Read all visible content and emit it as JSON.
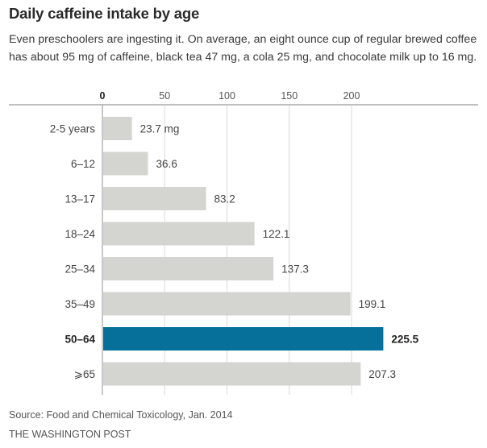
{
  "header": {
    "title": "Daily caffeine intake by age",
    "subtitle": "Even preschoolers are ingesting it. On average, an eight ounce cup of regular brewed coffee has about 95 mg of caffeine, black tea 47 mg, a cola 25 mg, and chocolate milk up to 16 mg."
  },
  "footer": {
    "source": "Source: Food and Chemical Toxicology, Jan. 2014",
    "credit": "THE WASHINGTON POST"
  },
  "colors": {
    "bar": "#d4d4d0",
    "highlight": "#06709a",
    "grid": "#d9d9d9",
    "axis": "#999999"
  },
  "chart_data": {
    "type": "bar",
    "orientation": "horizontal",
    "title": "Daily caffeine intake by age",
    "xlabel": "",
    "ylabel": "",
    "xlim": [
      0,
      240
    ],
    "xticks": [
      0,
      50,
      100,
      150,
      200
    ],
    "grid": true,
    "categories": [
      "2-5 years",
      "6–12",
      "13–17",
      "18–24",
      "25–34",
      "35–49",
      "50–64",
      "⩾65"
    ],
    "values": [
      23.7,
      36.6,
      83.2,
      122.1,
      137.3,
      199.1,
      225.5,
      207.3
    ],
    "value_labels": [
      "23.7 mg",
      "36.6",
      "83.2",
      "122.1",
      "137.3",
      "199.1",
      "225.5",
      "207.3"
    ],
    "highlight_index": 6,
    "units": "mg"
  }
}
